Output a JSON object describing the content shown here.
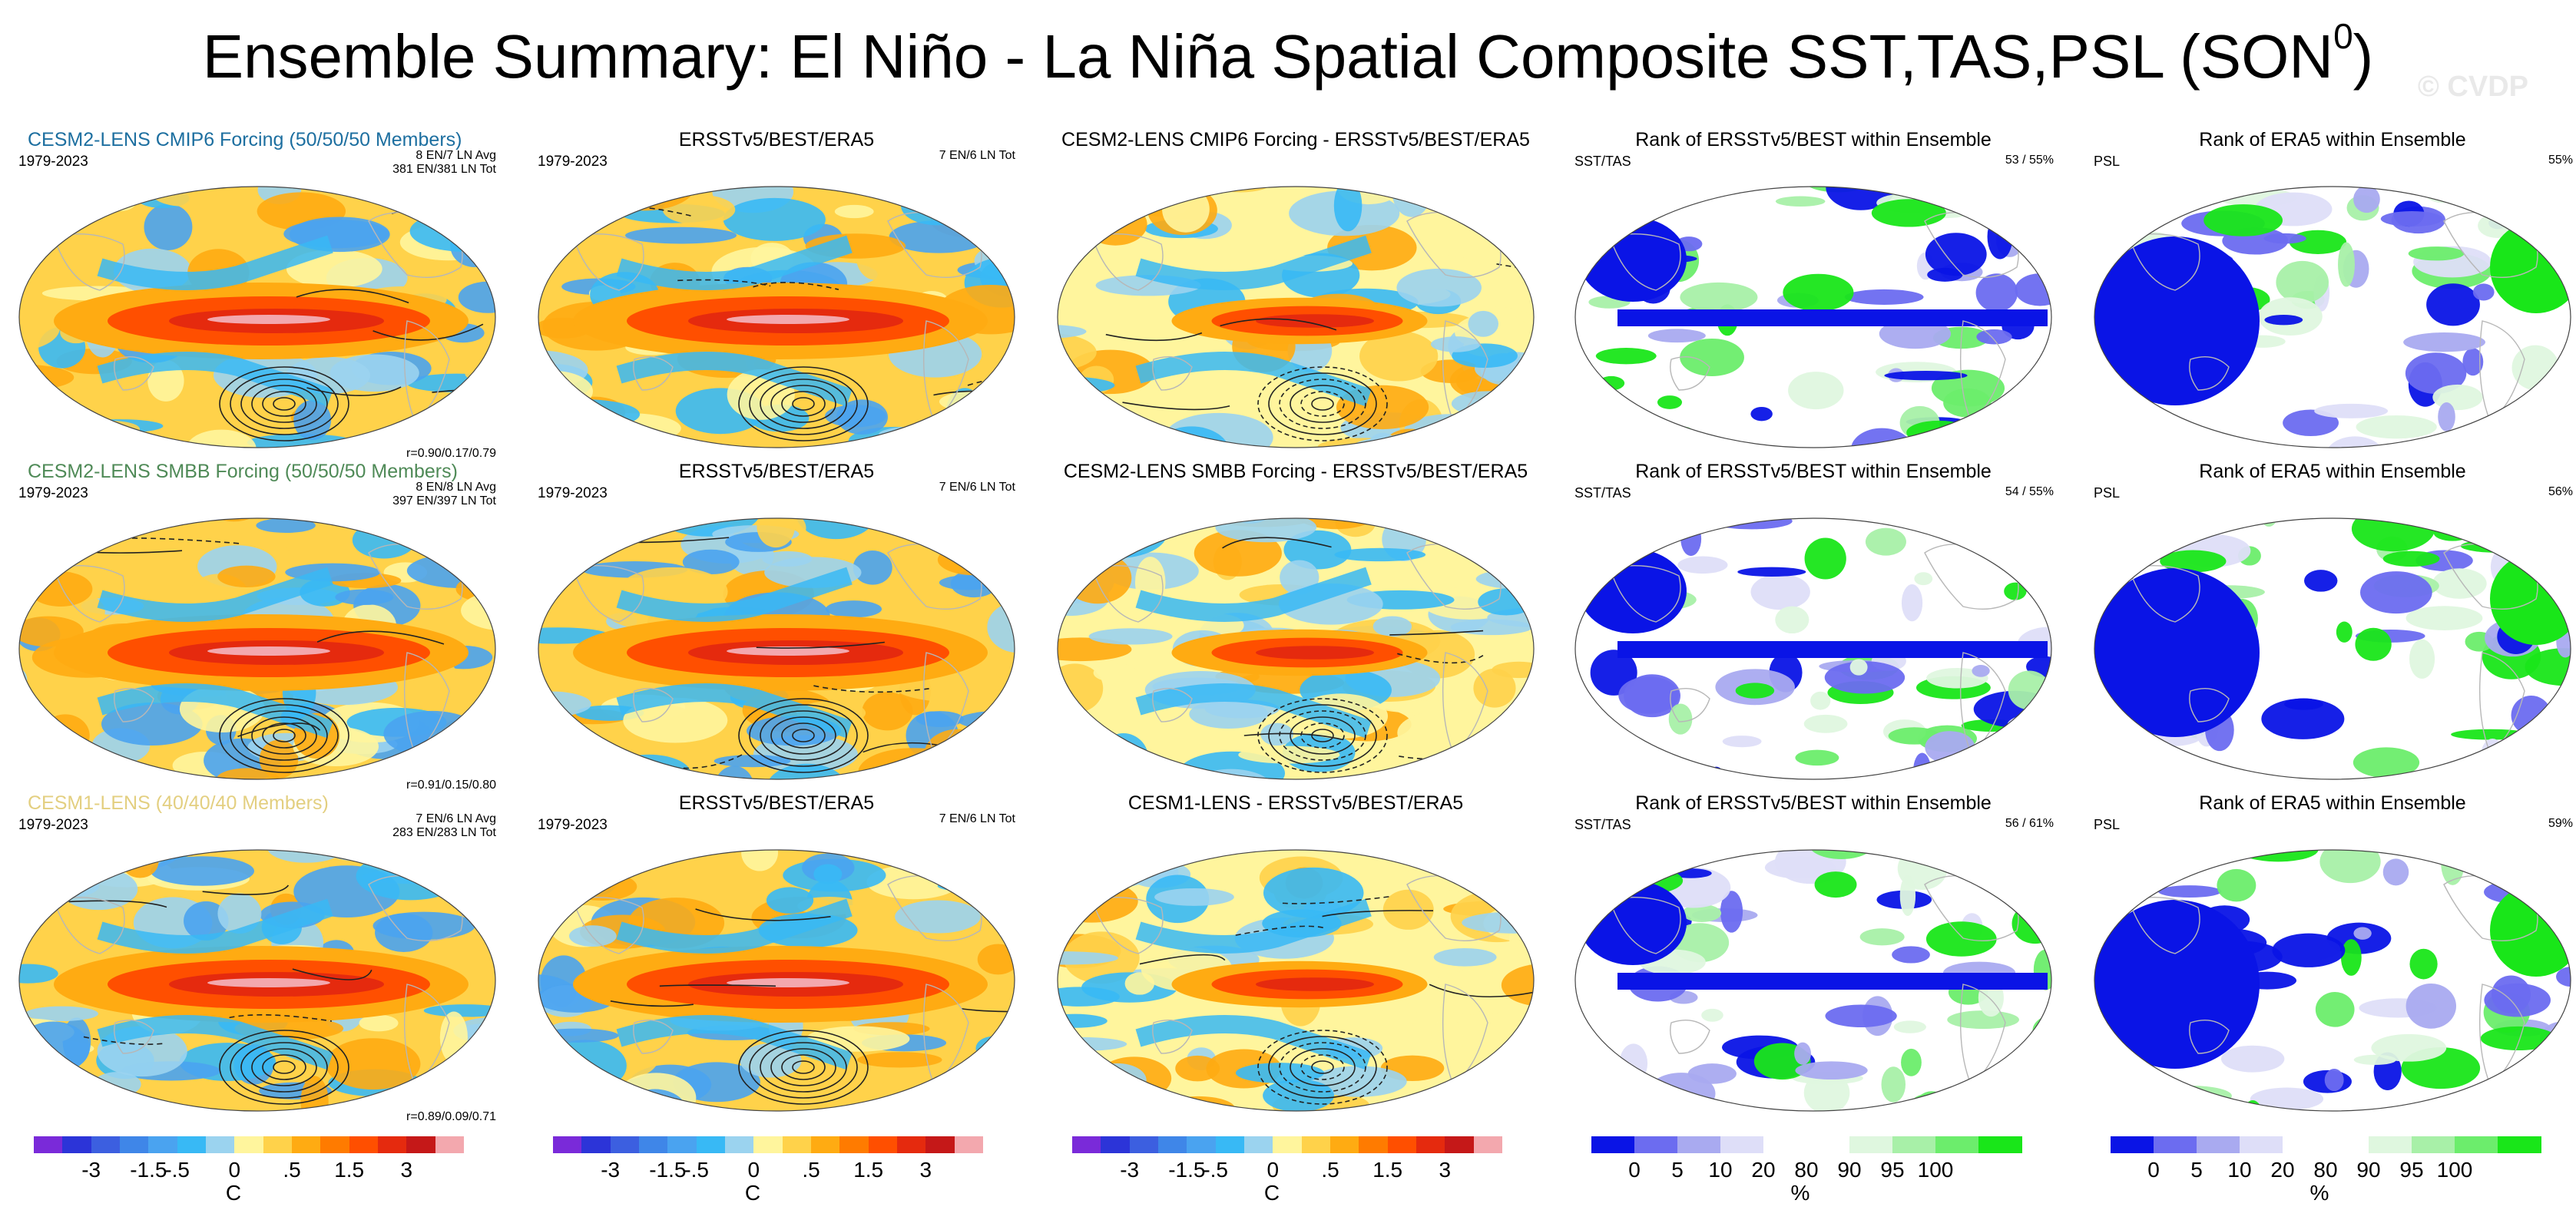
{
  "title": "Ensemble Summary: El Niño - La Niña Spatial Composite SST,TAS,PSL (SON",
  "title_sup": "0",
  "title_close": ")",
  "watermark": "© CVDP",
  "colors": {
    "temp_scale": [
      "#7a2ad9",
      "#2c34d8",
      "#3c5fe0",
      "#3f86e8",
      "#4aa3f0",
      "#38b9f5",
      "#9bd3ef",
      "#fff59d",
      "#ffd24a",
      "#ffab12",
      "#ff7b00",
      "#ff4f00",
      "#e52a0e",
      "#c51818",
      "#f3a8ae"
    ],
    "rank_scale": [
      "#0a14e6",
      "#6c6cf0",
      "#a9aaf0",
      "#dedef8",
      "#ffffff",
      "#ffffff",
      "#dff7df",
      "#a8f0a8",
      "#6ced6c",
      "#19e619"
    ],
    "land_outline": "#b7b7b7"
  },
  "chart_data": [
    {
      "type": "heatmap",
      "panel": "r1c1",
      "title": "CESM2-LENS CMIP6 Forcing (50/50/50 Members)",
      "title_color": "#1d6fa0",
      "period": "1979-2023",
      "info": [
        "8 EN/7 LN Avg",
        "381 EN/381 LN Tot"
      ],
      "correlation": "r=0.90/0.17/0.79",
      "variable": "SST/TAS/PSL composite"
    },
    {
      "type": "heatmap",
      "panel": "r1c2",
      "title": "ERSSTv5/BEST/ERA5",
      "period": "1979-2023",
      "info": [
        "7 EN/6 LN Tot"
      ]
    },
    {
      "type": "heatmap",
      "panel": "r1c3",
      "title": "CESM2-LENS CMIP6 Forcing - ERSSTv5/BEST/ERA5"
    },
    {
      "type": "heatmap",
      "panel": "r1c4",
      "title": "Rank of ERSSTv5/BEST within Ensemble",
      "left_label": "SST/TAS",
      "right_label": "53 /  55%"
    },
    {
      "type": "heatmap",
      "panel": "r1c5",
      "title": "Rank of ERA5 within Ensemble",
      "left_label": "PSL",
      "right_label": "55%"
    },
    {
      "type": "heatmap",
      "panel": "r2c1",
      "title": "CESM2-LENS SMBB Forcing (50/50/50 Members)",
      "title_color": "#4f8a57",
      "period": "1979-2023",
      "info": [
        "8 EN/8 LN Avg",
        "397 EN/397 LN Tot"
      ],
      "correlation": "r=0.91/0.15/0.80"
    },
    {
      "type": "heatmap",
      "panel": "r2c2",
      "title": "ERSSTv5/BEST/ERA5",
      "period": "1979-2023",
      "info": [
        "7 EN/6 LN Tot"
      ]
    },
    {
      "type": "heatmap",
      "panel": "r2c3",
      "title": "CESM2-LENS SMBB Forcing - ERSSTv5/BEST/ERA5"
    },
    {
      "type": "heatmap",
      "panel": "r2c4",
      "title": "Rank of ERSSTv5/BEST within Ensemble",
      "left_label": "SST/TAS",
      "right_label": "54 /  55%"
    },
    {
      "type": "heatmap",
      "panel": "r2c5",
      "title": "Rank of ERA5 within Ensemble",
      "left_label": "PSL",
      "right_label": "56%"
    },
    {
      "type": "heatmap",
      "panel": "r3c1",
      "title": "CESM1-LENS (40/40/40 Members)",
      "title_color": "#e3cf80",
      "period": "1979-2023",
      "info": [
        "7 EN/6 LN Avg",
        "283 EN/283 LN Tot"
      ],
      "correlation": "r=0.89/0.09/0.71"
    },
    {
      "type": "heatmap",
      "panel": "r3c2",
      "title": "ERSSTv5/BEST/ERA5",
      "period": "1979-2023",
      "info": [
        "7 EN/6 LN Tot"
      ]
    },
    {
      "type": "heatmap",
      "panel": "r3c3",
      "title": "CESM1-LENS - ERSSTv5/BEST/ERA5"
    },
    {
      "type": "heatmap",
      "panel": "r3c4",
      "title": "Rank of ERSSTv5/BEST within Ensemble",
      "left_label": "SST/TAS",
      "right_label": "56 /  61%"
    },
    {
      "type": "heatmap",
      "panel": "r3c5",
      "title": "Rank of ERA5 within Ensemble",
      "left_label": "PSL",
      "right_label": "59%"
    }
  ],
  "colorbars": {
    "temperature": {
      "ticks": [
        "-3",
        "-1.5",
        "-.5",
        "0",
        ".5",
        "1.5",
        "3"
      ],
      "unit": "C"
    },
    "rank": {
      "ticks": [
        "0",
        "5",
        "10",
        "20",
        "80",
        "90",
        "95",
        "100"
      ],
      "unit": "%"
    }
  }
}
